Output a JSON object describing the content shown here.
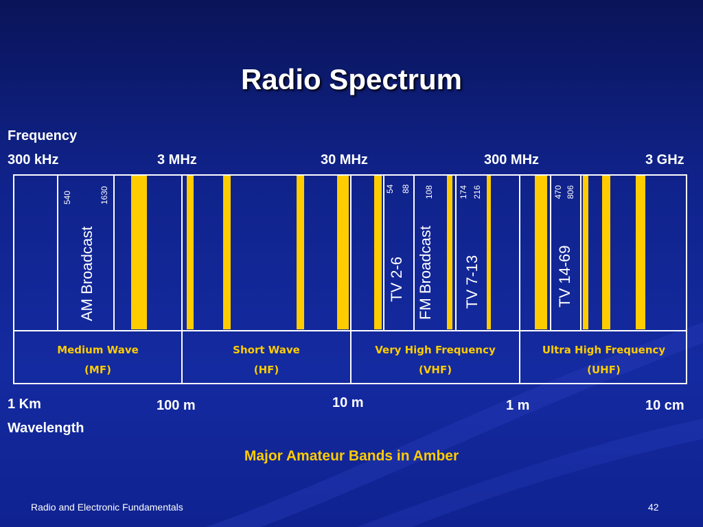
{
  "slide": {
    "title": "Radio Spectrum",
    "footer_left": "Radio and Electronic Fundamentals",
    "page_number": "42",
    "note": "Major Amateur Bands in Amber"
  },
  "frequency_axis": {
    "label": "Frequency",
    "ticks": [
      "300 kHz",
      "3 MHz",
      "30 MHz",
      "300 MHz",
      "3 GHz"
    ]
  },
  "wavelength_axis": {
    "label": "Wavelength",
    "ticks": [
      "1 Km",
      "100 m",
      "10 m",
      "1 m",
      "10 cm"
    ]
  },
  "services": {
    "am_low": "540",
    "am_high": "1630",
    "am_label": "AM Broadcast",
    "tv_low_a": "54",
    "tv_low_b": "88",
    "tv_low_label": "TV 2-6",
    "fm_high": "108",
    "fm_label": "FM Broadcast",
    "tv_mid_a": "174",
    "tv_mid_b": "216",
    "tv_mid_label": "TV 7-13",
    "uhf_a": "470",
    "uhf_b": "806",
    "uhf_label": "TV 14-69"
  },
  "bands": [
    {
      "name": "Medium Wave",
      "abbr": "(MF)"
    },
    {
      "name": "Short Wave",
      "abbr": "(HF)"
    },
    {
      "name": "Very High Frequency",
      "abbr": "(VHF)"
    },
    {
      "name": "Ultra High Frequency",
      "abbr": "(UHF)"
    }
  ],
  "colors": {
    "amber": "#ffcc00",
    "background": "#142aa0",
    "lines": "#ffffff"
  }
}
